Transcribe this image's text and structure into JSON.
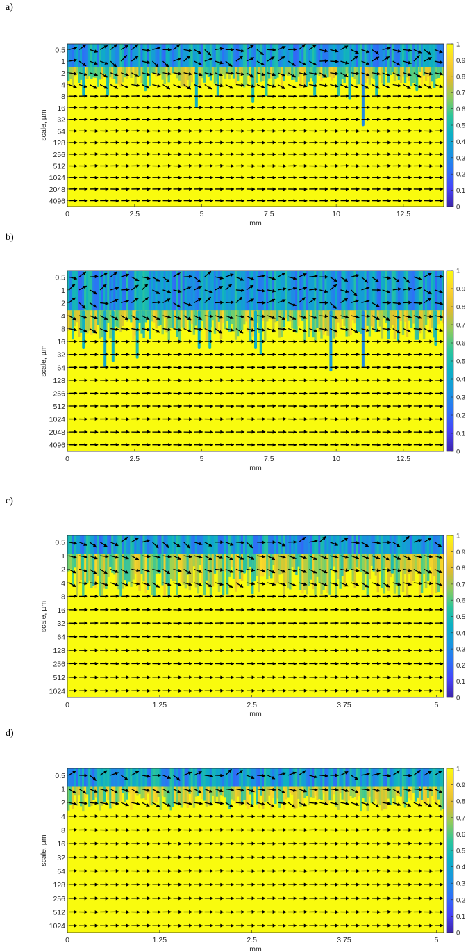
{
  "colormap": {
    "name": "parula",
    "stops": [
      "#3e26a8",
      "#4743f8",
      "#2d71f6",
      "#1996de",
      "#0dafc4",
      "#2cc59b",
      "#8dcb5e",
      "#dcbc32",
      "#fbd130",
      "#f9fb0e"
    ],
    "background_color": "#f9fb0e",
    "arrow_color": "#000000"
  },
  "chart_data": [
    {
      "panel_label": "a)",
      "type": "heatmap",
      "title": "",
      "xlabel": "mm",
      "ylabel": "scale, µm",
      "xlim": [
        0,
        14
      ],
      "xticks": [
        0,
        2.5,
        5,
        7.5,
        10,
        12.5
      ],
      "xtick_labels": [
        "0",
        "2.5",
        "5",
        "7.5",
        "10",
        "12.5"
      ],
      "yscale": "log2",
      "yticks": [
        0.5,
        1,
        2,
        4,
        8,
        16,
        32,
        64,
        128,
        256,
        512,
        1024,
        2048,
        4096
      ],
      "ytick_labels": [
        "0.5",
        "1",
        "2",
        "4",
        "8",
        "16",
        "32",
        "64",
        "128",
        "256",
        "512",
        "1024",
        "2048",
        "4096"
      ],
      "colorbar": {
        "range": [
          0,
          1
        ],
        "ticks": [
          0,
          0.1,
          0.2,
          0.3,
          0.4,
          0.5,
          0.6,
          0.7,
          0.8,
          0.9,
          1
        ],
        "tick_labels": [
          "0",
          "0.1",
          "0.2",
          "0.3",
          "0.4",
          "0.5",
          "0.6",
          "0.7",
          "0.8",
          "0.9",
          "1"
        ]
      },
      "low_coherence_band_up_to_scale": 1.4,
      "transition_scale": 4,
      "arrow_columns": 36,
      "vertical_streaks": [
        {
          "x": 0.6,
          "to_scale": 8,
          "value": 0.45
        },
        {
          "x": 1.5,
          "to_scale": 8,
          "value": 0.5
        },
        {
          "x": 2.9,
          "to_scale": 6,
          "value": 0.55
        },
        {
          "x": 4.8,
          "to_scale": 16,
          "value": 0.45
        },
        {
          "x": 5.6,
          "to_scale": 8,
          "value": 0.5
        },
        {
          "x": 6.9,
          "to_scale": 12,
          "value": 0.5
        },
        {
          "x": 7.4,
          "to_scale": 8,
          "value": 0.55
        },
        {
          "x": 9.2,
          "to_scale": 8,
          "value": 0.5
        },
        {
          "x": 10.1,
          "to_scale": 8,
          "value": 0.55
        },
        {
          "x": 10.5,
          "to_scale": 10,
          "value": 0.45
        },
        {
          "x": 11.0,
          "to_scale": 48,
          "value": 0.3
        },
        {
          "x": 11.5,
          "to_scale": 8,
          "value": 0.5
        },
        {
          "x": 13.0,
          "to_scale": 6,
          "value": 0.55
        }
      ]
    },
    {
      "panel_label": "b)",
      "type": "heatmap",
      "title": "",
      "xlabel": "mm",
      "ylabel": "scale, µm",
      "xlim": [
        0,
        14
      ],
      "xticks": [
        0,
        2.5,
        5,
        7.5,
        10,
        12.5
      ],
      "xtick_labels": [
        "0",
        "2.5",
        "5",
        "7.5",
        "10",
        "12.5"
      ],
      "yscale": "log2",
      "yticks": [
        0.5,
        1,
        2,
        4,
        8,
        16,
        32,
        64,
        128,
        256,
        512,
        1024,
        2048,
        4096
      ],
      "ytick_labels": [
        "0.5",
        "1",
        "2",
        "4",
        "8",
        "16",
        "32",
        "64",
        "128",
        "256",
        "512",
        "1024",
        "2048",
        "4096"
      ],
      "colorbar": {
        "range": [
          0,
          1
        ],
        "ticks": [
          0,
          0.1,
          0.2,
          0.3,
          0.4,
          0.5,
          0.6,
          0.7,
          0.8,
          0.9,
          1
        ],
        "tick_labels": [
          "0",
          "0.1",
          "0.2",
          "0.3",
          "0.4",
          "0.5",
          "0.6",
          "0.7",
          "0.8",
          "0.9",
          "1"
        ]
      },
      "low_coherence_band_up_to_scale": 3,
      "transition_scale": 12,
      "arrow_columns": 36,
      "vertical_streaks": [
        {
          "x": 0.6,
          "to_scale": 24,
          "value": 0.45
        },
        {
          "x": 1.4,
          "to_scale": 64,
          "value": 0.4
        },
        {
          "x": 1.7,
          "to_scale": 48,
          "value": 0.45
        },
        {
          "x": 2.6,
          "to_scale": 40,
          "value": 0.5
        },
        {
          "x": 4.9,
          "to_scale": 24,
          "value": 0.45
        },
        {
          "x": 5.3,
          "to_scale": 24,
          "value": 0.5
        },
        {
          "x": 7.0,
          "to_scale": 24,
          "value": 0.45
        },
        {
          "x": 7.2,
          "to_scale": 32,
          "value": 0.5
        },
        {
          "x": 9.8,
          "to_scale": 80,
          "value": 0.35
        },
        {
          "x": 11.0,
          "to_scale": 64,
          "value": 0.3
        },
        {
          "x": 12.3,
          "to_scale": 16,
          "value": 0.5
        },
        {
          "x": 13.7,
          "to_scale": 20,
          "value": 0.5
        }
      ]
    },
    {
      "panel_label": "c)",
      "type": "heatmap",
      "title": "",
      "xlabel": "mm",
      "ylabel": "scale, µm",
      "xlim": [
        0,
        5.1
      ],
      "xticks": [
        0,
        1.25,
        2.5,
        3.75,
        5
      ],
      "xtick_labels": [
        "0",
        "1.25",
        "2.5",
        "3.75",
        "5"
      ],
      "yscale": "log2",
      "yticks": [
        0.5,
        1,
        2,
        4,
        8,
        16,
        32,
        64,
        128,
        256,
        512,
        1024
      ],
      "ytick_labels": [
        "0.5",
        "1",
        "2",
        "4",
        "8",
        "16",
        "32",
        "64",
        "128",
        "256",
        "512",
        "1024"
      ],
      "colorbar": {
        "range": [
          0,
          1
        ],
        "ticks": [
          0,
          0.1,
          0.2,
          0.3,
          0.4,
          0.5,
          0.6,
          0.7,
          0.8,
          0.9,
          1
        ],
        "tick_labels": [
          "0",
          "0.1",
          "0.2",
          "0.3",
          "0.4",
          "0.5",
          "0.6",
          "0.7",
          "0.8",
          "0.9",
          "1"
        ]
      },
      "low_coherence_band_up_to_scale": 0.9,
      "transition_scale": 6,
      "arrow_columns": 36,
      "vertical_streaks": [
        {
          "x": 0.2,
          "to_scale": 2,
          "value": 0.55
        },
        {
          "x": 1.25,
          "to_scale": 2.5,
          "value": 0.5
        },
        {
          "x": 2.4,
          "to_scale": 2.5,
          "value": 0.55
        },
        {
          "x": 3.3,
          "to_scale": 2,
          "value": 0.55
        },
        {
          "x": 4.4,
          "to_scale": 2.5,
          "value": 0.5
        }
      ]
    },
    {
      "panel_label": "d)",
      "type": "heatmap",
      "title": "",
      "xlabel": "mm",
      "ylabel": "scale, µm",
      "xlim": [
        0,
        5.1
      ],
      "xticks": [
        0,
        1.25,
        2.5,
        3.75,
        5
      ],
      "xtick_labels": [
        "0",
        "1.25",
        "2.5",
        "3.75",
        "5"
      ],
      "yscale": "log2",
      "yticks": [
        0.5,
        1,
        2,
        4,
        8,
        16,
        32,
        64,
        128,
        256,
        512,
        1024
      ],
      "ytick_labels": [
        "0.5",
        "1",
        "2",
        "4",
        "8",
        "16",
        "32",
        "64",
        "128",
        "256",
        "512",
        "1024"
      ],
      "colorbar": {
        "range": [
          0,
          1
        ],
        "ticks": [
          0,
          0.1,
          0.2,
          0.3,
          0.4,
          0.5,
          0.6,
          0.7,
          0.8,
          0.9,
          1
        ],
        "tick_labels": [
          "0",
          "0.1",
          "0.2",
          "0.3",
          "0.4",
          "0.5",
          "0.6",
          "0.7",
          "0.8",
          "0.9",
          "1"
        ]
      },
      "low_coherence_band_up_to_scale": 0.9,
      "transition_scale": 2.5,
      "arrow_columns": 36,
      "vertical_streaks": [
        {
          "x": 0.5,
          "to_scale": 2,
          "value": 0.55
        },
        {
          "x": 2.4,
          "to_scale": 1.8,
          "value": 0.6
        },
        {
          "x": 4.6,
          "to_scale": 2,
          "value": 0.55
        }
      ]
    }
  ]
}
